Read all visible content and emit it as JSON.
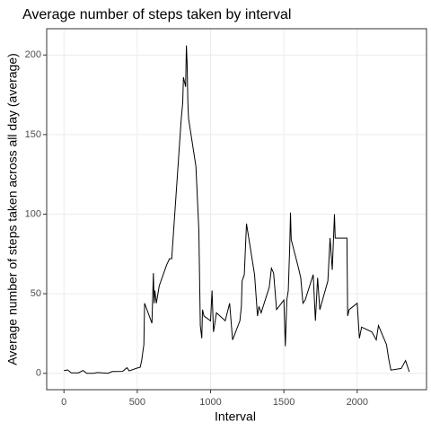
{
  "chart_data": {
    "type": "line",
    "title": "Average number of steps taken by interval",
    "x_label": "Interval",
    "y_label": "Average number of steps taken across all day (average)",
    "color": "#000000",
    "grid": true,
    "x": [
      0,
      25,
      50,
      100,
      130,
      155,
      200,
      230,
      300,
      330,
      400,
      430,
      445,
      500,
      520,
      530,
      545,
      550,
      600,
      610,
      615,
      620,
      630,
      650,
      700,
      720,
      735,
      800,
      810,
      815,
      830,
      835,
      840,
      845,
      850,
      900,
      920,
      930,
      940,
      945,
      955,
      1000,
      1010,
      1020,
      1040,
      1100,
      1130,
      1150,
      1200,
      1210,
      1215,
      1230,
      1245,
      1300,
      1320,
      1330,
      1345,
      1400,
      1415,
      1430,
      1450,
      1500,
      1510,
      1520,
      1530,
      1540,
      1545,
      1550,
      1600,
      1615,
      1630,
      1645,
      1700,
      1715,
      1730,
      1745,
      1800,
      1815,
      1830,
      1845,
      1850,
      1900,
      1930,
      1935,
      1945,
      2000,
      2015,
      2030,
      2100,
      2130,
      2145,
      2200,
      2215,
      2230,
      2300,
      2330,
      2355
    ],
    "values": [
      1.7,
      2.1,
      0.3,
      0.3,
      1.8,
      0,
      0,
      0.5,
      0,
      1.1,
      1.2,
      3.5,
      1.5,
      3.3,
      3.8,
      8,
      18,
      44,
      31.5,
      63,
      44,
      52,
      44,
      55,
      68,
      72,
      72,
      160,
      170,
      186,
      180,
      206,
      195,
      170,
      160,
      130,
      90,
      30,
      22,
      40,
      36,
      33,
      52,
      26,
      38,
      33,
      44,
      21,
      33,
      42,
      58,
      62,
      94,
      62,
      36,
      42,
      38,
      54,
      66,
      63,
      40,
      46,
      17,
      46,
      52,
      80,
      101,
      84,
      66,
      60,
      44,
      46,
      62,
      33,
      60,
      40,
      58,
      85,
      65,
      100,
      85,
      85,
      85,
      36,
      40,
      44,
      22,
      29,
      26,
      21,
      30,
      18,
      9,
      2,
      3,
      8,
      1
    ],
    "xlim": [
      -117.75,
      2472.75
    ],
    "ylim": [
      -10.3,
      216.5
    ],
    "xticks": [
      0,
      500,
      1000,
      1500,
      2000
    ],
    "yticks": [
      0,
      50,
      100,
      150,
      200
    ]
  }
}
